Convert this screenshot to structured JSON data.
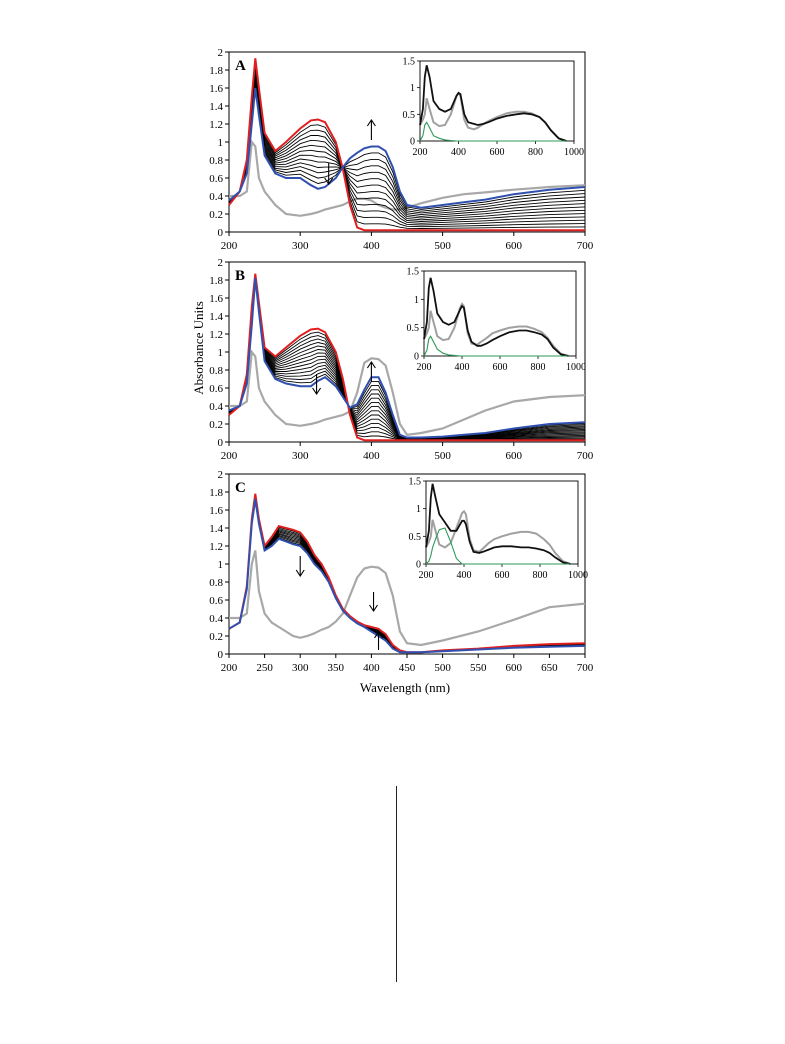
{
  "figure": {
    "y_axis_title": "Absorbance Units",
    "x_axis_title": "Wavelength (nm)"
  },
  "colors": {
    "initial": "#e02020",
    "final": "#3050b0",
    "intermediate": "#000000",
    "reference": "#a8a8a8",
    "inset_black": "#111111",
    "inset_gray": "#a0a0a0",
    "inset_green": "#2e9a5a"
  },
  "chart_data": [
    {
      "type": "line",
      "panel": "A",
      "xlim": [
        200,
        700
      ],
      "ylim": [
        0,
        2
      ],
      "x_ticks": [
        200,
        300,
        400,
        500,
        600,
        700
      ],
      "y_ticks": [
        0,
        0.2,
        0.4,
        0.6,
        0.8,
        1,
        1.2,
        1.4,
        1.6,
        1.8,
        2
      ],
      "x": [
        200,
        215,
        225,
        232,
        237,
        242,
        250,
        265,
        280,
        300,
        315,
        325,
        335,
        350,
        360,
        370,
        380,
        390,
        400,
        410,
        420,
        430,
        440,
        450,
        470,
        500,
        530,
        560,
        600,
        650,
        700
      ],
      "intermediate_count": 12,
      "series": [
        {
          "role": "initial",
          "values": [
            0.3,
            0.45,
            0.8,
            1.5,
            1.93,
            1.6,
            1.1,
            0.9,
            1.0,
            1.15,
            1.24,
            1.25,
            1.22,
            1.0,
            0.7,
            0.3,
            0.05,
            0.02,
            0.02,
            0.02,
            0.02,
            0.02,
            0.02,
            0.02,
            0.02,
            0.02,
            0.02,
            0.02,
            0.02,
            0.02,
            0.02
          ]
        },
        {
          "role": "final",
          "values": [
            0.35,
            0.45,
            0.65,
            1.2,
            1.6,
            1.3,
            0.85,
            0.65,
            0.6,
            0.6,
            0.52,
            0.48,
            0.5,
            0.6,
            0.72,
            0.82,
            0.88,
            0.93,
            0.95,
            0.95,
            0.9,
            0.72,
            0.45,
            0.3,
            0.27,
            0.3,
            0.33,
            0.36,
            0.42,
            0.47,
            0.5
          ]
        },
        {
          "role": "reference",
          "values": [
            0.4,
            0.4,
            0.45,
            1.0,
            0.95,
            0.6,
            0.45,
            0.3,
            0.2,
            0.18,
            0.2,
            0.22,
            0.25,
            0.28,
            0.3,
            0.34,
            0.37,
            0.37,
            0.35,
            0.3,
            0.27,
            0.25,
            0.25,
            0.27,
            0.32,
            0.38,
            0.42,
            0.44,
            0.47,
            0.5,
            0.52
          ]
        }
      ],
      "arrows": [
        {
          "x": 340,
          "dir": "down"
        },
        {
          "x": 400,
          "dir": "up"
        }
      ],
      "inset": {
        "xlim": [
          200,
          1000
        ],
        "ylim": [
          0,
          1.5
        ],
        "x_ticks": [
          200,
          400,
          600,
          800,
          1000
        ],
        "y_ticks": [
          0,
          0.5,
          1,
          1.5
        ],
        "y_tick_labels": [
          "0",
          "0.5",
          "1",
          "1.5"
        ],
        "x": [
          200,
          215,
          225,
          235,
          250,
          270,
          300,
          330,
          360,
          390,
          400,
          410,
          430,
          450,
          480,
          500,
          530,
          560,
          600,
          650,
          700,
          740,
          780,
          820,
          850,
          880,
          920,
          960
        ],
        "series": [
          {
            "role": "inset_black",
            "values": [
              0.3,
              0.6,
              1.2,
              1.42,
              1.2,
              0.75,
              0.6,
              0.55,
              0.6,
              0.85,
              0.9,
              0.88,
              0.5,
              0.35,
              0.32,
              0.3,
              0.32,
              0.36,
              0.42,
              0.47,
              0.5,
              0.52,
              0.5,
              0.45,
              0.35,
              0.2,
              0.05,
              0.0
            ]
          },
          {
            "role": "inset_gray",
            "values": [
              0.3,
              0.4,
              0.5,
              0.8,
              0.6,
              0.35,
              0.28,
              0.3,
              0.5,
              0.85,
              0.9,
              0.85,
              0.4,
              0.25,
              0.22,
              0.25,
              0.32,
              0.38,
              0.45,
              0.52,
              0.55,
              0.55,
              0.52,
              0.45,
              0.35,
              0.2,
              0.05,
              0.0
            ]
          },
          {
            "role": "inset_green",
            "values": [
              0.0,
              0.1,
              0.3,
              0.35,
              0.25,
              0.1,
              0.05,
              0.02,
              0.01,
              0.0,
              0.0,
              0.0,
              0.0,
              0.0,
              0.0,
              0.0,
              0.0,
              0.0,
              0.0,
              0.0,
              0.0,
              0.0,
              0.0,
              0.0,
              0.0,
              0.0,
              0.0,
              0.0
            ]
          }
        ]
      }
    },
    {
      "type": "line",
      "panel": "B",
      "xlim": [
        200,
        700
      ],
      "ylim": [
        0,
        2
      ],
      "x_ticks": [
        200,
        300,
        400,
        500,
        600,
        700
      ],
      "y_ticks": [
        0,
        0.2,
        0.4,
        0.6,
        0.8,
        1,
        1.2,
        1.4,
        1.6,
        1.8,
        2
      ],
      "x": [
        200,
        215,
        225,
        232,
        237,
        242,
        250,
        265,
        280,
        300,
        315,
        325,
        335,
        350,
        360,
        370,
        380,
        390,
        400,
        410,
        420,
        430,
        440,
        450,
        470,
        500,
        530,
        560,
        600,
        650,
        700
      ],
      "intermediate_count": 14,
      "series": [
        {
          "role": "initial",
          "values": [
            0.3,
            0.4,
            0.75,
            1.5,
            1.87,
            1.55,
            1.05,
            0.95,
            1.05,
            1.18,
            1.25,
            1.26,
            1.22,
            1.0,
            0.7,
            0.3,
            0.05,
            0.02,
            0.02,
            0.02,
            0.02,
            0.02,
            0.02,
            0.02,
            0.02,
            0.02,
            0.02,
            0.02,
            0.02,
            0.02,
            0.02
          ]
        },
        {
          "role": "final",
          "values": [
            0.35,
            0.4,
            0.65,
            1.3,
            1.82,
            1.45,
            0.9,
            0.7,
            0.65,
            0.62,
            0.62,
            0.68,
            0.72,
            0.62,
            0.5,
            0.38,
            0.42,
            0.58,
            0.72,
            0.72,
            0.55,
            0.3,
            0.08,
            0.05,
            0.05,
            0.06,
            0.08,
            0.1,
            0.15,
            0.2,
            0.22
          ]
        },
        {
          "role": "reference",
          "values": [
            0.4,
            0.4,
            0.45,
            1.0,
            0.95,
            0.6,
            0.45,
            0.3,
            0.2,
            0.18,
            0.2,
            0.22,
            0.25,
            0.28,
            0.3,
            0.34,
            0.55,
            0.88,
            0.93,
            0.92,
            0.85,
            0.55,
            0.2,
            0.08,
            0.1,
            0.15,
            0.25,
            0.35,
            0.45,
            0.5,
            0.52
          ]
        }
      ],
      "arrows": [
        {
          "x": 323,
          "dir": "down"
        },
        {
          "x": 400,
          "dir": "up"
        }
      ],
      "inset": {
        "xlim": [
          200,
          1000
        ],
        "ylim": [
          0,
          1.5
        ],
        "x_ticks": [
          200,
          400,
          600,
          800,
          1000
        ],
        "y_ticks": [
          0,
          0.5,
          1,
          1.5
        ],
        "y_tick_labels": [
          "0",
          "0.5",
          "1",
          "1.5"
        ],
        "x": [
          200,
          215,
          225,
          235,
          250,
          270,
          300,
          330,
          360,
          390,
          400,
          410,
          430,
          450,
          480,
          500,
          530,
          560,
          600,
          650,
          700,
          740,
          780,
          820,
          850,
          880,
          920,
          960
        ],
        "series": [
          {
            "role": "inset_black",
            "values": [
              0.3,
              0.6,
              1.2,
              1.38,
              1.15,
              0.75,
              0.6,
              0.55,
              0.6,
              0.82,
              0.88,
              0.85,
              0.45,
              0.25,
              0.18,
              0.18,
              0.22,
              0.28,
              0.35,
              0.42,
              0.45,
              0.45,
              0.42,
              0.38,
              0.3,
              0.15,
              0.03,
              0.0
            ]
          },
          {
            "role": "inset_gray",
            "values": [
              0.3,
              0.4,
              0.5,
              0.8,
              0.6,
              0.35,
              0.28,
              0.3,
              0.5,
              0.85,
              0.92,
              0.88,
              0.4,
              0.22,
              0.2,
              0.25,
              0.32,
              0.4,
              0.45,
              0.5,
              0.52,
              0.52,
              0.48,
              0.42,
              0.32,
              0.18,
              0.04,
              0.0
            ]
          },
          {
            "role": "inset_green",
            "values": [
              0.0,
              0.1,
              0.3,
              0.35,
              0.25,
              0.12,
              0.05,
              0.02,
              0.01,
              0.0,
              0.0,
              0.0,
              0.0,
              0.0,
              0.0,
              0.0,
              0.0,
              0.0,
              0.0,
              0.0,
              0.0,
              0.0,
              0.0,
              0.0,
              0.0,
              0.0,
              0.0,
              0.0
            ]
          }
        ]
      }
    },
    {
      "type": "line",
      "panel": "C",
      "xlim": [
        200,
        700
      ],
      "ylim": [
        0,
        2
      ],
      "x_ticks": [
        200,
        250,
        300,
        350,
        400,
        450,
        500,
        550,
        600,
        650,
        700
      ],
      "y_ticks": [
        0,
        0.2,
        0.4,
        0.6,
        0.8,
        1,
        1.2,
        1.4,
        1.6,
        1.8,
        2
      ],
      "x": [
        200,
        215,
        225,
        232,
        237,
        242,
        250,
        260,
        270,
        280,
        290,
        300,
        310,
        320,
        330,
        340,
        350,
        360,
        370,
        380,
        390,
        400,
        410,
        420,
        430,
        440,
        450,
        470,
        500,
        550,
        600,
        650,
        700
      ],
      "intermediate_count": 10,
      "series": [
        {
          "role": "initial",
          "values": [
            0.28,
            0.35,
            0.75,
            1.5,
            1.78,
            1.5,
            1.2,
            1.3,
            1.42,
            1.4,
            1.38,
            1.35,
            1.25,
            1.1,
            1.0,
            0.85,
            0.65,
            0.5,
            0.42,
            0.36,
            0.32,
            0.3,
            0.28,
            0.22,
            0.1,
            0.04,
            0.02,
            0.02,
            0.04,
            0.06,
            0.09,
            0.11,
            0.12
          ]
        },
        {
          "role": "final",
          "values": [
            0.28,
            0.35,
            0.72,
            1.45,
            1.72,
            1.45,
            1.15,
            1.2,
            1.28,
            1.25,
            1.22,
            1.2,
            1.12,
            1.0,
            0.92,
            0.8,
            0.62,
            0.48,
            0.4,
            0.34,
            0.3,
            0.25,
            0.2,
            0.15,
            0.06,
            0.02,
            0.02,
            0.02,
            0.03,
            0.05,
            0.07,
            0.08,
            0.09
          ]
        },
        {
          "role": "reference",
          "values": [
            0.4,
            0.4,
            0.45,
            1.0,
            1.15,
            0.7,
            0.45,
            0.35,
            0.3,
            0.25,
            0.2,
            0.18,
            0.2,
            0.23,
            0.27,
            0.3,
            0.36,
            0.45,
            0.65,
            0.85,
            0.95,
            0.97,
            0.96,
            0.9,
            0.65,
            0.25,
            0.12,
            0.1,
            0.15,
            0.25,
            0.38,
            0.52,
            0.56
          ]
        }
      ],
      "arrows": [
        {
          "x": 300,
          "dir": "down"
        },
        {
          "x": 403,
          "dir": "down"
        },
        {
          "x": 410,
          "dir": "up"
        }
      ],
      "inset": {
        "xlim": [
          200,
          1000
        ],
        "ylim": [
          0,
          1.5
        ],
        "x_ticks": [
          200,
          400,
          600,
          800,
          1000
        ],
        "y_ticks": [
          0,
          0.5,
          1,
          1.5
        ],
        "y_tick_labels": [
          "0",
          "0.5",
          "1",
          "1.5"
        ],
        "x": [
          200,
          215,
          225,
          235,
          250,
          270,
          300,
          330,
          360,
          390,
          400,
          410,
          430,
          450,
          480,
          500,
          530,
          560,
          600,
          650,
          700,
          740,
          780,
          820,
          850,
          880,
          920,
          960
        ],
        "series": [
          {
            "role": "inset_black",
            "values": [
              0.3,
              0.6,
              1.2,
              1.45,
              1.2,
              0.9,
              0.75,
              0.6,
              0.6,
              0.78,
              0.78,
              0.72,
              0.4,
              0.22,
              0.2,
              0.22,
              0.26,
              0.3,
              0.32,
              0.32,
              0.3,
              0.3,
              0.28,
              0.25,
              0.2,
              0.12,
              0.03,
              0.0
            ]
          },
          {
            "role": "inset_gray",
            "values": [
              0.3,
              0.4,
              0.5,
              0.8,
              0.6,
              0.35,
              0.3,
              0.38,
              0.65,
              0.92,
              0.95,
              0.9,
              0.45,
              0.25,
              0.22,
              0.28,
              0.38,
              0.45,
              0.5,
              0.55,
              0.58,
              0.58,
              0.55,
              0.45,
              0.35,
              0.2,
              0.05,
              0.0
            ]
          },
          {
            "role": "inset_green",
            "values": [
              0.0,
              0.05,
              0.15,
              0.3,
              0.45,
              0.62,
              0.65,
              0.4,
              0.1,
              0.0,
              0.0,
              0.0,
              0.0,
              0.0,
              0.0,
              0.0,
              0.0,
              0.0,
              0.0,
              0.0,
              0.0,
              0.0,
              0.0,
              0.0,
              0.0,
              0.0,
              0.0,
              0.0
            ]
          }
        ]
      }
    }
  ]
}
